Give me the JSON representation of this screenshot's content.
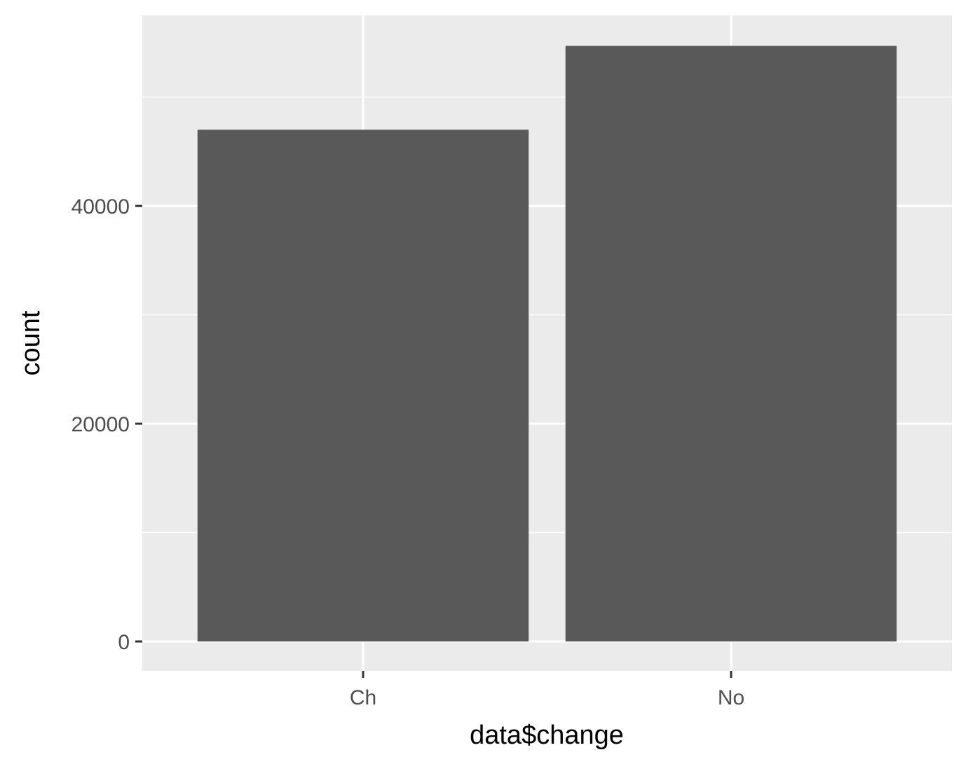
{
  "chart_data": {
    "type": "bar",
    "title": "",
    "xlabel": "data$change",
    "ylabel": "count",
    "categories": [
      "Ch",
      "No"
    ],
    "values": [
      47000,
      54700
    ],
    "ylim": [
      -2700,
      57500
    ],
    "y_ticks": [
      0,
      20000,
      40000
    ],
    "y_minor_ticks": [
      10000,
      30000,
      50000
    ],
    "y_tick_labels": [
      "0",
      "20000",
      "40000"
    ],
    "grid": true,
    "legend": "none"
  },
  "colors": {
    "panel_background": "#ebebeb",
    "grid_line": "#ffffff",
    "bar_fill": "#595959",
    "tick_mark": "#333333",
    "tick_label": "#4d4d4d",
    "axis_title": "#000000"
  }
}
